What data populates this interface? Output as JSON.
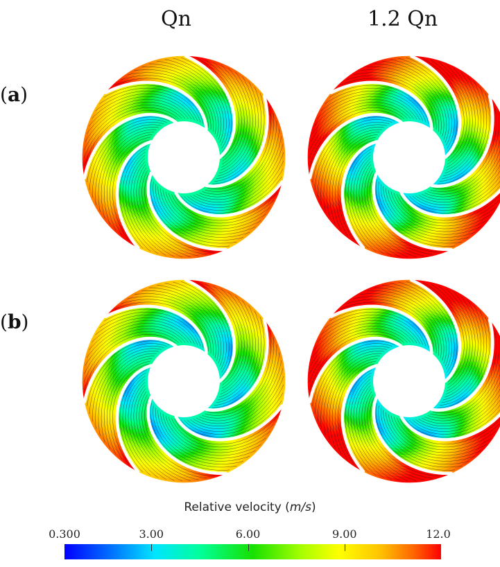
{
  "columns": {
    "left": "Qn",
    "right": "1.2 Qn"
  },
  "rows": {
    "a": {
      "open": "(",
      "letter": "a",
      "close": ")"
    },
    "b": {
      "open": "(",
      "letter": "b",
      "close": ")"
    }
  },
  "colorbar": {
    "title_prefix": "Relative velocity (",
    "title_unit": "m/s",
    "title_suffix": ")",
    "tick_labels": [
      "0.300",
      "3.00",
      "6.00",
      "9.00",
      "12.0"
    ],
    "min": 0.3,
    "max": 12.0,
    "colors": [
      "#0000ff",
      "#0077ff",
      "#00e5ff",
      "#00ff9a",
      "#17e000",
      "#a8ff00",
      "#ffff00",
      "#ffc200",
      "#ff6200",
      "#ff0000"
    ]
  },
  "panels": {
    "a_left": {
      "outer_shift": 0.0,
      "suction_shift": 0.0,
      "accent": "#ff1a00"
    },
    "a_right": {
      "outer_shift": 0.25,
      "suction_shift": 0.1,
      "accent": "#ff1a00"
    },
    "b_left": {
      "outer_shift": -0.05,
      "suction_shift": 0.05,
      "accent": "#ffae00"
    },
    "b_right": {
      "outer_shift": 0.25,
      "suction_shift": 0.1,
      "accent": "#ff1a00"
    }
  }
}
